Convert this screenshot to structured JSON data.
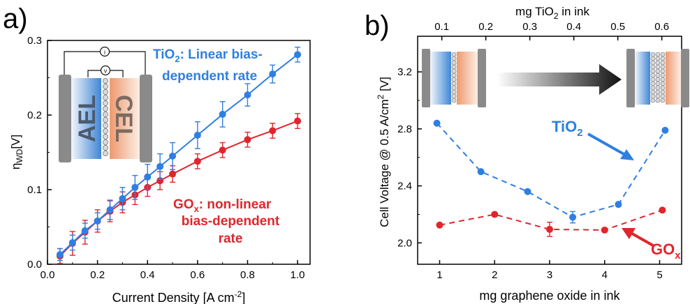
{
  "panels": {
    "a": {
      "label": "a)"
    },
    "b": {
      "label": "b)"
    }
  },
  "colors": {
    "tio2": "#2f7fe0",
    "gox": "#e0262c",
    "axis": "#000000",
    "cell_gray": "#8a8a8a",
    "ael_blue": "#3f86d6",
    "cel_orange": "#ee9a6e"
  },
  "chart_data": [
    {
      "panel": "a",
      "type": "line",
      "xlabel": "Current Density [A cm",
      "xlabel_sup": "-2",
      "xlabel_end": "]",
      "ylabel_main": "η",
      "ylabel_sub": "WD",
      "ylabel_end": "[V]",
      "xlim": [
        0.0,
        1.05
      ],
      "ylim": [
        0.0,
        0.3
      ],
      "xticks": [
        "0.0",
        "0.2",
        "0.4",
        "0.6",
        "0.8",
        "1.0"
      ],
      "yticks": [
        "0.0",
        "0.1",
        "0.2",
        "0.3"
      ],
      "series": [
        {
          "key": "tio2",
          "x": [
            0.05,
            0.1,
            0.15,
            0.2,
            0.25,
            0.3,
            0.35,
            0.4,
            0.45,
            0.5,
            0.6,
            0.7,
            0.8,
            0.9,
            1.0
          ],
          "y": [
            0.013,
            0.029,
            0.045,
            0.058,
            0.073,
            0.088,
            0.103,
            0.117,
            0.131,
            0.145,
            0.173,
            0.201,
            0.227,
            0.255,
            0.281
          ],
          "err": [
            0.008,
            0.01,
            0.01,
            0.011,
            0.013,
            0.015,
            0.016,
            0.017,
            0.017,
            0.018,
            0.018,
            0.017,
            0.015,
            0.012,
            0.01
          ]
        },
        {
          "key": "gox",
          "x": [
            0.05,
            0.1,
            0.15,
            0.2,
            0.25,
            0.3,
            0.35,
            0.4,
            0.45,
            0.5,
            0.6,
            0.7,
            0.8,
            0.9,
            1.0
          ],
          "y": [
            0.011,
            0.028,
            0.043,
            0.058,
            0.071,
            0.083,
            0.093,
            0.103,
            0.112,
            0.121,
            0.138,
            0.153,
            0.167,
            0.179,
            0.192
          ],
          "err": [
            0.01,
            0.016,
            0.016,
            0.015,
            0.014,
            0.014,
            0.013,
            0.012,
            0.012,
            0.011,
            0.01,
            0.01,
            0.01,
            0.01,
            0.01
          ]
        }
      ],
      "annotations": {
        "tio2_line1_a": "TiO",
        "tio2_line1_sub": "2",
        "tio2_line1_b": ": Linear bias-",
        "tio2_line2": "dependent rate",
        "gox_line1_a": "GO",
        "gox_line1_sub": "x",
        "gox_line1_b": ": non-linear",
        "gox_line2": "bias-dependent",
        "gox_line3": "rate",
        "inset_ael": "AEL",
        "inset_cel": "CEL",
        "inset_i": "i",
        "inset_v": "v"
      }
    },
    {
      "panel": "b",
      "type": "scatter",
      "xlabel": "mg graphene oxide in ink",
      "x2label_a": "mg TiO",
      "x2label_sub": "2",
      "x2label_b": " in ink",
      "ylabel_a": "Cell Voltage @ 0.5 A/cm",
      "ylabel_sup": "2",
      "ylabel_b": " [V]",
      "xlim": [
        0.6,
        5.4
      ],
      "ylim": [
        1.85,
        3.45
      ],
      "x2lim": [
        0.045,
        0.645
      ],
      "xticks": [
        "1",
        "2",
        "3",
        "4",
        "5"
      ],
      "x2ticks": [
        "0.1",
        "0.2",
        "0.3",
        "0.4",
        "0.5",
        "0.6"
      ],
      "yticks": [
        "2.0",
        "2.4",
        "2.8",
        "3.2"
      ],
      "series": [
        {
          "key": "tio2",
          "x": [
            0.95,
            1.75,
            2.6,
            3.42,
            4.25,
            5.1
          ],
          "y": [
            2.84,
            2.5,
            2.36,
            2.18,
            2.27,
            2.79
          ],
          "err": [
            0,
            0,
            0,
            0.04,
            0,
            0
          ]
        },
        {
          "key": "gox",
          "x": [
            1.0,
            2.0,
            3.0,
            4.0,
            5.05
          ],
          "y": [
            2.125,
            2.2,
            2.095,
            2.09,
            2.23
          ],
          "err": [
            0,
            0,
            0.05,
            0,
            0
          ]
        }
      ],
      "annotations": {
        "tio2_a": "TiO",
        "tio2_sub": "2",
        "gox_a": "GO",
        "gox_sub": "x"
      }
    }
  ]
}
